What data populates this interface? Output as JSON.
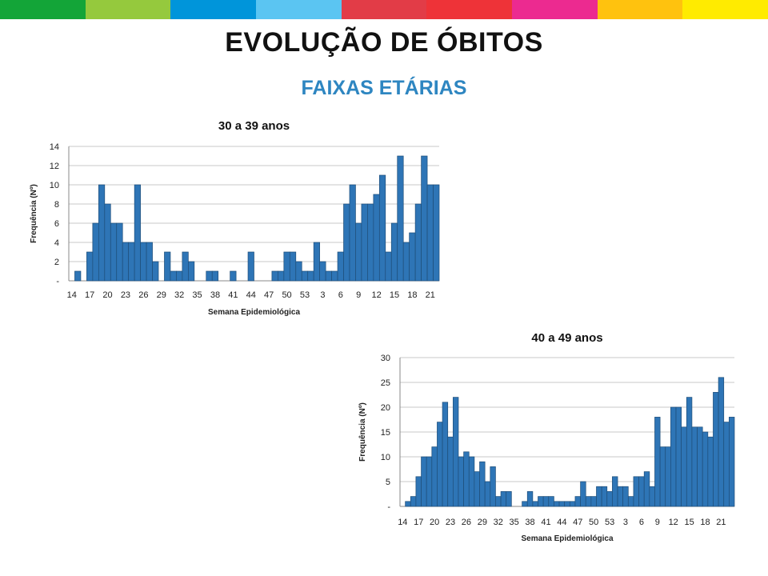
{
  "page": {
    "title": "EVOLUÇÃO DE ÓBITOS",
    "subtitle": "FAIXAS ETÁRIAS",
    "stripe_colors": [
      "#13A538",
      "#95C93D",
      "#0095DA",
      "#5BC5F2",
      "#E23C47",
      "#EE3338",
      "#EC2A90",
      "#FFC20E",
      "#FFEB00"
    ]
  },
  "colors": {
    "bar": "#2E75B6",
    "bar_edge": "#1F4E79",
    "subtitle": "#2E86C1"
  },
  "chart_data": [
    {
      "type": "bar",
      "title": "30 a 39 anos",
      "xlabel": "Semana Epidemiológica",
      "ylabel": "Frequência (Nº)",
      "ylim": [
        0,
        14
      ],
      "yticks": [
        0,
        2,
        4,
        6,
        8,
        10,
        12,
        14
      ],
      "ytick_labels": [
        "-",
        "2",
        "4",
        "6",
        "8",
        "10",
        "12",
        "14"
      ],
      "xtick_labels": [
        "14",
        "17",
        "20",
        "23",
        "26",
        "29",
        "32",
        "35",
        "38",
        "41",
        "44",
        "47",
        "50",
        "53",
        "3",
        "6",
        "9",
        "12",
        "15",
        "18",
        "21"
      ],
      "values": [
        0,
        1,
        0,
        3,
        6,
        10,
        8,
        6,
        6,
        4,
        4,
        10,
        4,
        4,
        2,
        0,
        3,
        1,
        1,
        3,
        2,
        0,
        0,
        1,
        1,
        0,
        0,
        1,
        0,
        0,
        3,
        0,
        0,
        0,
        1,
        1,
        3,
        3,
        2,
        1,
        1,
        4,
        2,
        1,
        1,
        3,
        8,
        10,
        6,
        8,
        8,
        9,
        11,
        3,
        6,
        13,
        4,
        5,
        8,
        13,
        10,
        10
      ]
    },
    {
      "type": "bar",
      "title": "40 a 49 anos",
      "xlabel": "Semana Epidemiológica",
      "ylabel": "Frequência (Nº)",
      "ylim": [
        0,
        30
      ],
      "yticks": [
        0,
        5,
        10,
        15,
        20,
        25,
        30
      ],
      "ytick_labels": [
        "-",
        "5",
        "10",
        "15",
        "20",
        "25",
        "30"
      ],
      "xtick_labels": [
        "14",
        "17",
        "20",
        "23",
        "26",
        "29",
        "32",
        "35",
        "38",
        "41",
        "44",
        "47",
        "50",
        "53",
        "3",
        "6",
        "9",
        "12",
        "15",
        "18",
        "21"
      ],
      "values": [
        0,
        1,
        2,
        6,
        10,
        10,
        12,
        17,
        21,
        14,
        22,
        10,
        11,
        10,
        7,
        9,
        5,
        8,
        2,
        3,
        3,
        0,
        0,
        1,
        3,
        1,
        2,
        2,
        2,
        1,
        1,
        1,
        1,
        2,
        5,
        2,
        2,
        4,
        4,
        3,
        6,
        4,
        4,
        2,
        6,
        6,
        7,
        4,
        18,
        12,
        12,
        20,
        20,
        16,
        22,
        16,
        16,
        15,
        14,
        23,
        26,
        17,
        18
      ]
    }
  ]
}
